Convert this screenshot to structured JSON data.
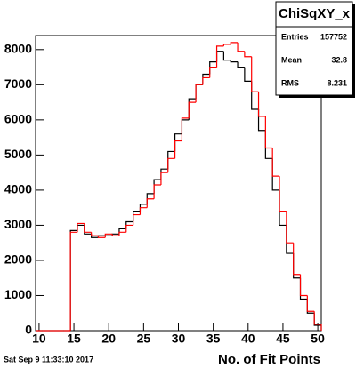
{
  "chart_data": {
    "type": "histogram",
    "title": "ChiSqXY_x",
    "x_label": "No. of Fit Points",
    "timestamp": "Sat Sep  9 11:33:10 2017",
    "bins": [
      9.5,
      10.5,
      11.5,
      12.5,
      13.5,
      14.5,
      15.5,
      16.5,
      17.5,
      18.5,
      19.5,
      20.5,
      21.5,
      22.5,
      23.5,
      24.5,
      25.5,
      26.5,
      27.5,
      28.5,
      29.5,
      30.5,
      31.5,
      32.5,
      33.5,
      34.5,
      35.5,
      36.5,
      37.5,
      38.5,
      39.5,
      40.5,
      41.5,
      42.5,
      43.5,
      44.5,
      45.5,
      46.5,
      47.5,
      48.5,
      49.5,
      50.5
    ],
    "series": [
      {
        "color": "#000000",
        "values": [
          0,
          0,
          0,
          0,
          0,
          2850,
          3000,
          2750,
          2650,
          2700,
          2700,
          2750,
          2900,
          3100,
          3400,
          3600,
          3900,
          4300,
          4600,
          5100,
          5600,
          6000,
          6600,
          7000,
          7300,
          7650,
          7950,
          7700,
          7650,
          7500,
          7100,
          6300,
          5700,
          4900,
          4000,
          3000,
          2200,
          1500,
          900,
          500,
          150
        ]
      },
      {
        "color": "#ff0000",
        "values": [
          0,
          0,
          0,
          0,
          0,
          2800,
          3050,
          2800,
          2700,
          2650,
          2750,
          2700,
          2800,
          3000,
          3300,
          3500,
          3750,
          4150,
          4500,
          4900,
          5400,
          6050,
          6500,
          7000,
          7200,
          7500,
          8100,
          8150,
          8200,
          7950,
          7800,
          6800,
          6100,
          5200,
          4400,
          3400,
          2500,
          1600,
          1000,
          550,
          180
        ]
      }
    ],
    "xlim": [
      9.5,
      50.5
    ],
    "ylim": [
      0,
      8400
    ],
    "xticks": [
      10,
      15,
      20,
      25,
      30,
      35,
      40,
      45,
      50
    ],
    "yticks": [
      0,
      1000,
      2000,
      3000,
      4000,
      5000,
      6000,
      7000,
      8000
    ],
    "stats": {
      "labels": [
        "Entries",
        "Mean",
        "RMS"
      ],
      "values": [
        157752,
        32.8,
        8.231
      ]
    }
  }
}
